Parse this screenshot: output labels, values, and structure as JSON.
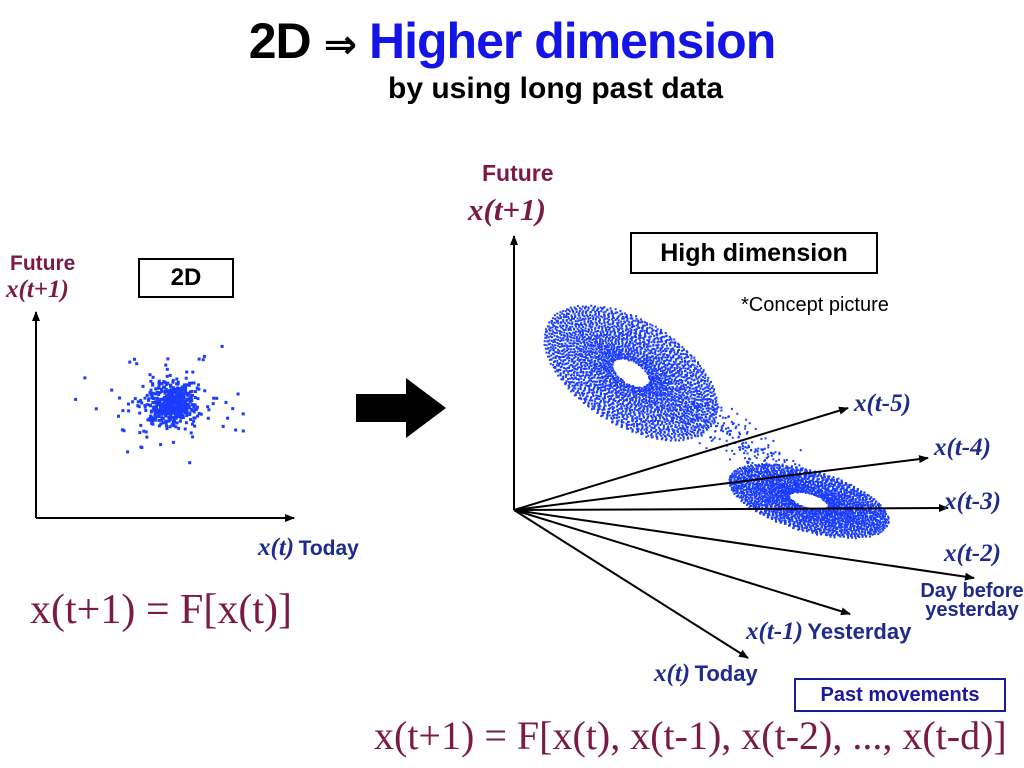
{
  "title": {
    "lead": "2D",
    "arrow": "⇒",
    "highlight": "Higher dimension"
  },
  "subtitle": "by using long past data",
  "left_panel": {
    "y_label_word": "Future",
    "y_label_expr": "x(t+1)",
    "box_label": "2D",
    "x_label_expr": "x(t)",
    "x_label_word": "Today",
    "equation": "x(t+1) = F[x(t)]"
  },
  "right_panel": {
    "y_label_word": "Future",
    "y_label_expr": "x(t+1)",
    "box_label": "High dimension",
    "note": "*Concept picture",
    "axes": [
      {
        "expr": "x(t-5)",
        "word": ""
      },
      {
        "expr": "x(t-4)",
        "word": ""
      },
      {
        "expr": "x(t-3)",
        "word": ""
      },
      {
        "expr": "x(t-2)",
        "word": "Day before yesterday"
      },
      {
        "expr": "x(t-1)",
        "word": "Yesterday"
      },
      {
        "expr": "x(t)",
        "word": "Today"
      }
    ],
    "past_box": "Past movements",
    "equation": "x(t+1) = F[x(t), x(t-1), x(t-2), ..., x(t-d)]"
  },
  "colors": {
    "title_blue": "#1414e6",
    "maroon": "#7a1a45",
    "navy": "#1e2a8c",
    "dots": "#1a3cff"
  }
}
